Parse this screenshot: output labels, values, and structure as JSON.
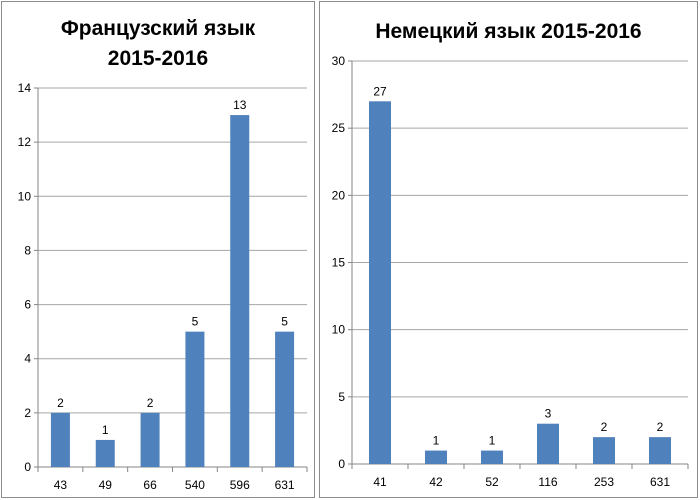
{
  "colors": {
    "bar": "#4f81bd",
    "grid": "#a6a6a6",
    "axis": "#868686"
  },
  "chart_data": [
    {
      "type": "bar",
      "title_lines": [
        "Французский язык",
        "2015-2016"
      ],
      "categories": [
        "43",
        "49",
        "66",
        "540",
        "596",
        "631"
      ],
      "values": [
        2,
        1,
        2,
        5,
        13,
        5
      ],
      "data_labels": [
        "2",
        "1",
        "2",
        "5",
        "13",
        "5"
      ],
      "ylim": [
        0,
        14
      ],
      "yticks": [
        0,
        2,
        4,
        6,
        8,
        10,
        12,
        14
      ],
      "ytick_labels": [
        "0",
        "2",
        "4",
        "6",
        "8",
        "10",
        "12",
        "14"
      ],
      "grid": true,
      "legend": "none"
    },
    {
      "type": "bar",
      "title_lines": [
        "Немецкий язык 2015-2016"
      ],
      "categories": [
        "41",
        "42",
        "52",
        "116",
        "253",
        "631"
      ],
      "values": [
        27,
        1,
        1,
        3,
        2,
        2
      ],
      "data_labels": [
        "27",
        "1",
        "1",
        "3",
        "2",
        "2"
      ],
      "ylim": [
        0,
        30
      ],
      "yticks": [
        0,
        5,
        10,
        15,
        20,
        25,
        30
      ],
      "ytick_labels": [
        "0",
        "5",
        "10",
        "15",
        "20",
        "25",
        "30"
      ],
      "grid": true,
      "legend": "none"
    }
  ]
}
